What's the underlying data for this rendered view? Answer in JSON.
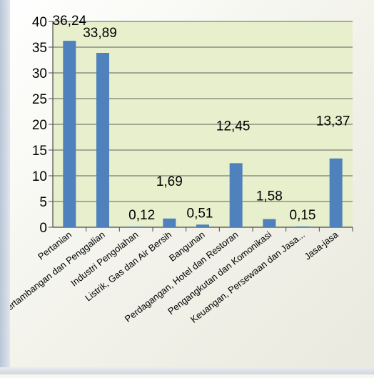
{
  "chart_data": {
    "type": "bar",
    "categories": [
      "Pertanian",
      "Pertambangan dan Penggalian",
      "Industri Pengolahan",
      "Listrik, Gas dan Air Bersih",
      "Bangunan",
      "Perdagangan, Hotel dan Restoran",
      "Pengangkutan dan Komonikasi",
      "Keuangan, Persewaan dan Jasa...",
      "Jasa-jasa"
    ],
    "values": [
      36.24,
      33.89,
      0.12,
      1.69,
      0.51,
      12.45,
      1.58,
      0.15,
      13.37
    ],
    "value_labels": [
      "36,24",
      "33,89",
      "0,12",
      "1,69",
      "0,51",
      "12,45",
      "1,58",
      "0,15",
      "13,37"
    ],
    "y_ticks": [
      "0",
      "5",
      "10",
      "15",
      "20",
      "25",
      "30",
      "35",
      "40"
    ],
    "ylim": [
      0,
      40
    ],
    "grid": true,
    "legend": "none",
    "colors": {
      "bar": "#4f81bd",
      "plot_background": "#e7efcc",
      "grid": "#5f5f5f",
      "axis": "#4a4a4a"
    }
  }
}
